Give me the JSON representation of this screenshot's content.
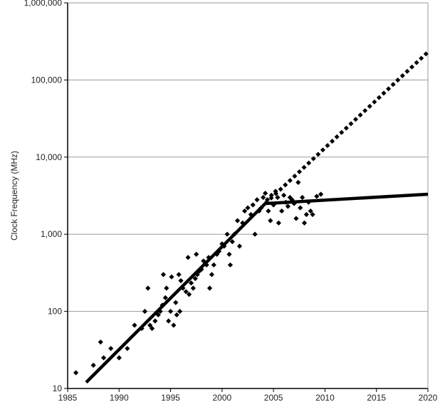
{
  "chart_data": {
    "type": "scatter",
    "title": "",
    "xlabel": "",
    "ylabel": "Clock Frequency (MHz)",
    "yscale": "log",
    "xlim": [
      1985,
      2020
    ],
    "ylim": [
      10,
      1000000
    ],
    "grid": "horizontal",
    "xticks": [
      "1985",
      "1990",
      "1995",
      "2000",
      "2005",
      "2010",
      "2015",
      "2020"
    ],
    "yticks": [
      "10",
      "100",
      "1,000",
      "10,000",
      "100,000",
      "1,000,000"
    ],
    "points": [
      [
        1985.8,
        16
      ],
      [
        1987.5,
        20
      ],
      [
        1988.2,
        40
      ],
      [
        1988.5,
        25
      ],
      [
        1989.2,
        33
      ],
      [
        1990.0,
        25
      ],
      [
        1990.8,
        33
      ],
      [
        1991.5,
        66
      ],
      [
        1992.2,
        60
      ],
      [
        1992.5,
        100
      ],
      [
        1992.8,
        200
      ],
      [
        1993.0,
        66
      ],
      [
        1993.2,
        60
      ],
      [
        1993.5,
        75
      ],
      [
        1993.8,
        90
      ],
      [
        1994.0,
        100
      ],
      [
        1994.2,
        120
      ],
      [
        1994.3,
        300
      ],
      [
        1994.5,
        150
      ],
      [
        1994.6,
        200
      ],
      [
        1994.8,
        75
      ],
      [
        1995.0,
        100
      ],
      [
        1995.1,
        280
      ],
      [
        1995.3,
        66
      ],
      [
        1995.5,
        130
      ],
      [
        1995.6,
        90
      ],
      [
        1995.8,
        300
      ],
      [
        1995.9,
        100
      ],
      [
        1996.0,
        250
      ],
      [
        1996.2,
        200
      ],
      [
        1996.5,
        180
      ],
      [
        1996.7,
        500
      ],
      [
        1996.8,
        166
      ],
      [
        1997.0,
        233
      ],
      [
        1997.2,
        200
      ],
      [
        1997.4,
        266
      ],
      [
        1997.5,
        550
      ],
      [
        1997.6,
        300
      ],
      [
        1997.8,
        333
      ],
      [
        1998.0,
        350
      ],
      [
        1998.2,
        450
      ],
      [
        1998.5,
        400
      ],
      [
        1998.7,
        500
      ],
      [
        1998.8,
        200
      ],
      [
        1999.0,
        300
      ],
      [
        1999.2,
        400
      ],
      [
        1999.5,
        550
      ],
      [
        1999.7,
        600
      ],
      [
        2000.0,
        750
      ],
      [
        2000.2,
        700
      ],
      [
        2000.5,
        1000
      ],
      [
        2000.7,
        550
      ],
      [
        2000.8,
        400
      ],
      [
        2001.0,
        800
      ],
      [
        2001.2,
        1000
      ],
      [
        2001.5,
        1500
      ],
      [
        2001.7,
        700
      ],
      [
        2002.0,
        1400
      ],
      [
        2002.2,
        2000
      ],
      [
        2002.5,
        2200
      ],
      [
        2002.8,
        1800
      ],
      [
        2003.0,
        2400
      ],
      [
        2003.2,
        1000
      ],
      [
        2003.4,
        2800
      ],
      [
        2003.6,
        2000
      ],
      [
        2003.8,
        2200
      ],
      [
        2004.0,
        3000
      ],
      [
        2004.2,
        3400
      ],
      [
        2004.4,
        2800
      ],
      [
        2004.5,
        2000
      ],
      [
        2004.7,
        1500
      ],
      [
        2004.8,
        3200
      ],
      [
        2005.0,
        2400
      ],
      [
        2005.2,
        3600
      ],
      [
        2005.4,
        3000
      ],
      [
        2005.5,
        1400
      ],
      [
        2005.8,
        2000
      ],
      [
        2006.0,
        3200
      ],
      [
        2006.2,
        2600
      ],
      [
        2006.4,
        2300
      ],
      [
        2006.6,
        3000
      ],
      [
        2006.8,
        2800
      ],
      [
        2007.0,
        2500
      ],
      [
        2007.2,
        1600
      ],
      [
        2007.4,
        4700
      ],
      [
        2007.6,
        2200
      ],
      [
        2007.8,
        3000
      ],
      [
        2008.0,
        1400
      ],
      [
        2008.2,
        1800
      ],
      [
        2008.4,
        2600
      ],
      [
        2008.6,
        2000
      ],
      [
        2008.8,
        1800
      ],
      [
        2009.2,
        3100
      ],
      [
        2009.6,
        3300
      ]
    ],
    "series": [
      {
        "style": "solid",
        "x": [
          1986.8,
          2004.2,
          2020
        ],
        "y": [
          12,
          2500,
          3300
        ]
      },
      {
        "style": "dotted",
        "x": [
          2004.2,
          2020
        ],
        "y": [
          2500,
          230000
        ]
      }
    ]
  }
}
